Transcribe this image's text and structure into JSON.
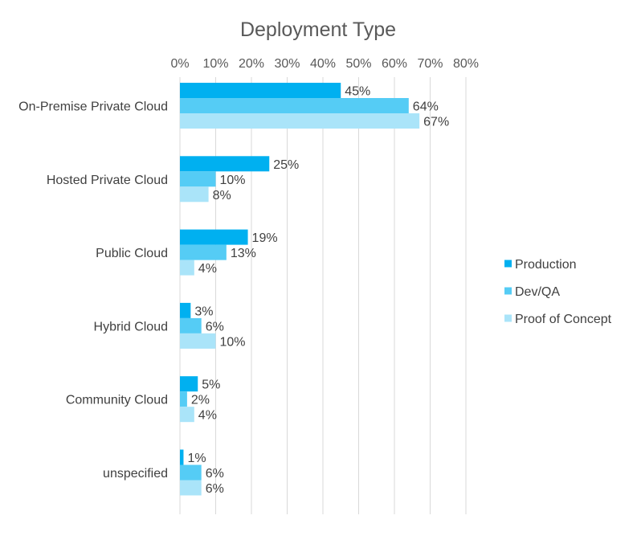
{
  "chart_data": {
    "type": "bar",
    "orientation": "horizontal",
    "title": "Deployment Type",
    "xlabel": "",
    "ylabel": "",
    "xlim": [
      0,
      80
    ],
    "x_ticks": [
      0,
      10,
      20,
      30,
      40,
      50,
      60,
      70,
      80
    ],
    "x_tick_labels": [
      "0%",
      "10%",
      "20%",
      "30%",
      "40%",
      "50%",
      "60%",
      "70%",
      "80%"
    ],
    "tick_position": "top",
    "grid": true,
    "legend_position": "right",
    "categories": [
      "On-Premise Private Cloud",
      "Hosted Private Cloud",
      "Public Cloud",
      "Hybrid Cloud",
      "Community Cloud",
      "unspecified"
    ],
    "series": [
      {
        "name": "Production",
        "color": "#00b0f0",
        "values": [
          45,
          25,
          19,
          3,
          5,
          1
        ],
        "labels": [
          "45%",
          "25%",
          "19%",
          "3%",
          "5%",
          "1%"
        ]
      },
      {
        "name": "Dev/QA",
        "color": "#55ccf5",
        "values": [
          64,
          10,
          13,
          6,
          2,
          6
        ],
        "labels": [
          "64%",
          "10%",
          "13%",
          "6%",
          "2%",
          "6%"
        ]
      },
      {
        "name": "Proof of Concept",
        "color": "#aae4f9",
        "values": [
          67,
          8,
          4,
          10,
          4,
          6
        ],
        "labels": [
          "67%",
          "8%",
          "4%",
          "10%",
          "4%",
          "6%"
        ]
      }
    ]
  }
}
